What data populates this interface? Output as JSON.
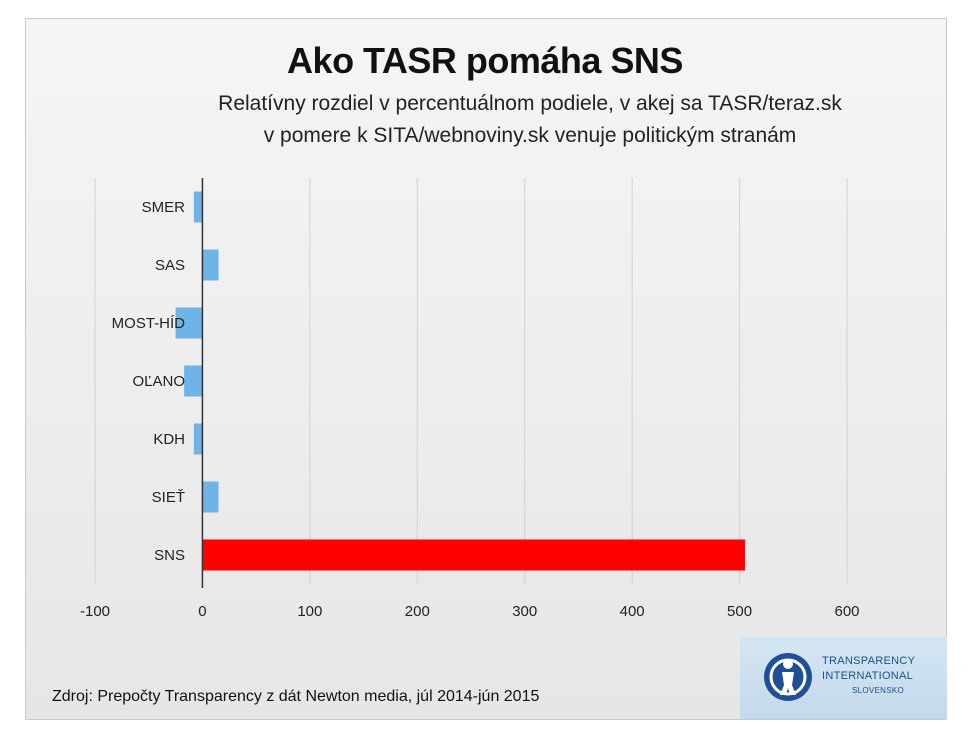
{
  "chart_data": {
    "type": "bar",
    "orientation": "horizontal",
    "title": "Ako TASR pomáha SNS",
    "subtitle": [
      "Relatívny rozdiel v percentuálnom podiele, v akej sa TASR/teraz.sk",
      "v pomere k SITA/webnoviny.sk venuje politickým stranám"
    ],
    "categories": [
      "SMER",
      "SAS",
      "MOST-HÍD",
      "OĽANO",
      "KDH",
      "SIEŤ",
      "SNS"
    ],
    "values": [
      -8,
      15,
      -25,
      -17,
      -8,
      15,
      505
    ],
    "colors": [
      "#6fb4e6",
      "#6fb4e6",
      "#6fb4e6",
      "#6fb4e6",
      "#6fb4e6",
      "#6fb4e6",
      "#ff0000"
    ],
    "xlim": [
      -100,
      600
    ],
    "xticks": [
      -100,
      0,
      100,
      200,
      300,
      400,
      500,
      600
    ],
    "xlabel": "",
    "ylabel": "",
    "grid": "vertical",
    "legend": "none"
  },
  "footer": {
    "source": "Zdroj: Prepočty Transparency z dát Newton media, júl 2014-jún 2015"
  },
  "logo": {
    "line1": "TRANSPARENCY",
    "line2": "INTERNATIONAL",
    "line3": "SLOVENSKO",
    "icon": "globe-figure-icon"
  }
}
